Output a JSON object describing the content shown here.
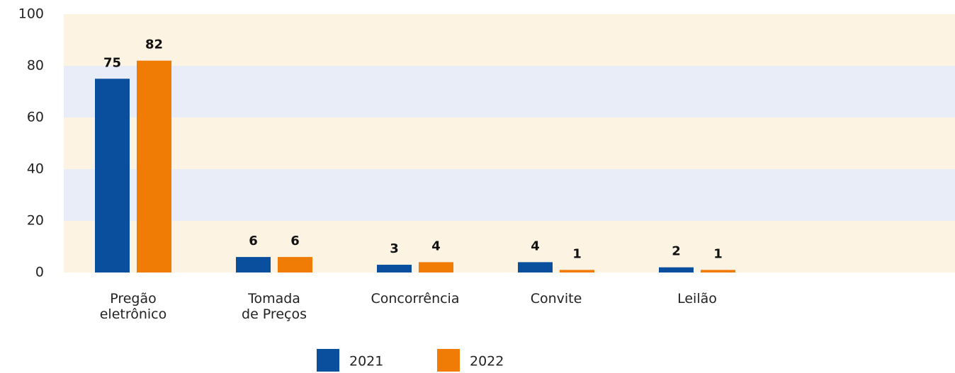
{
  "chart_data": {
    "type": "bar",
    "categories": [
      "Pregão\neletrônico",
      "Tomada\nde Preços",
      "Concorrência",
      "Convite",
      "Leilão"
    ],
    "series": [
      {
        "name": "2021",
        "color": "#0a4f9e",
        "values": [
          75,
          6,
          3,
          4,
          2
        ]
      },
      {
        "name": "2022",
        "color": "#f07b05",
        "values": [
          82,
          6,
          4,
          1,
          1
        ]
      }
    ],
    "ylim": [
      0,
      100
    ],
    "yticks": [
      0,
      20,
      40,
      60,
      80,
      100
    ],
    "bands": [
      "#fdf3e3",
      "#e8edf7"
    ]
  }
}
